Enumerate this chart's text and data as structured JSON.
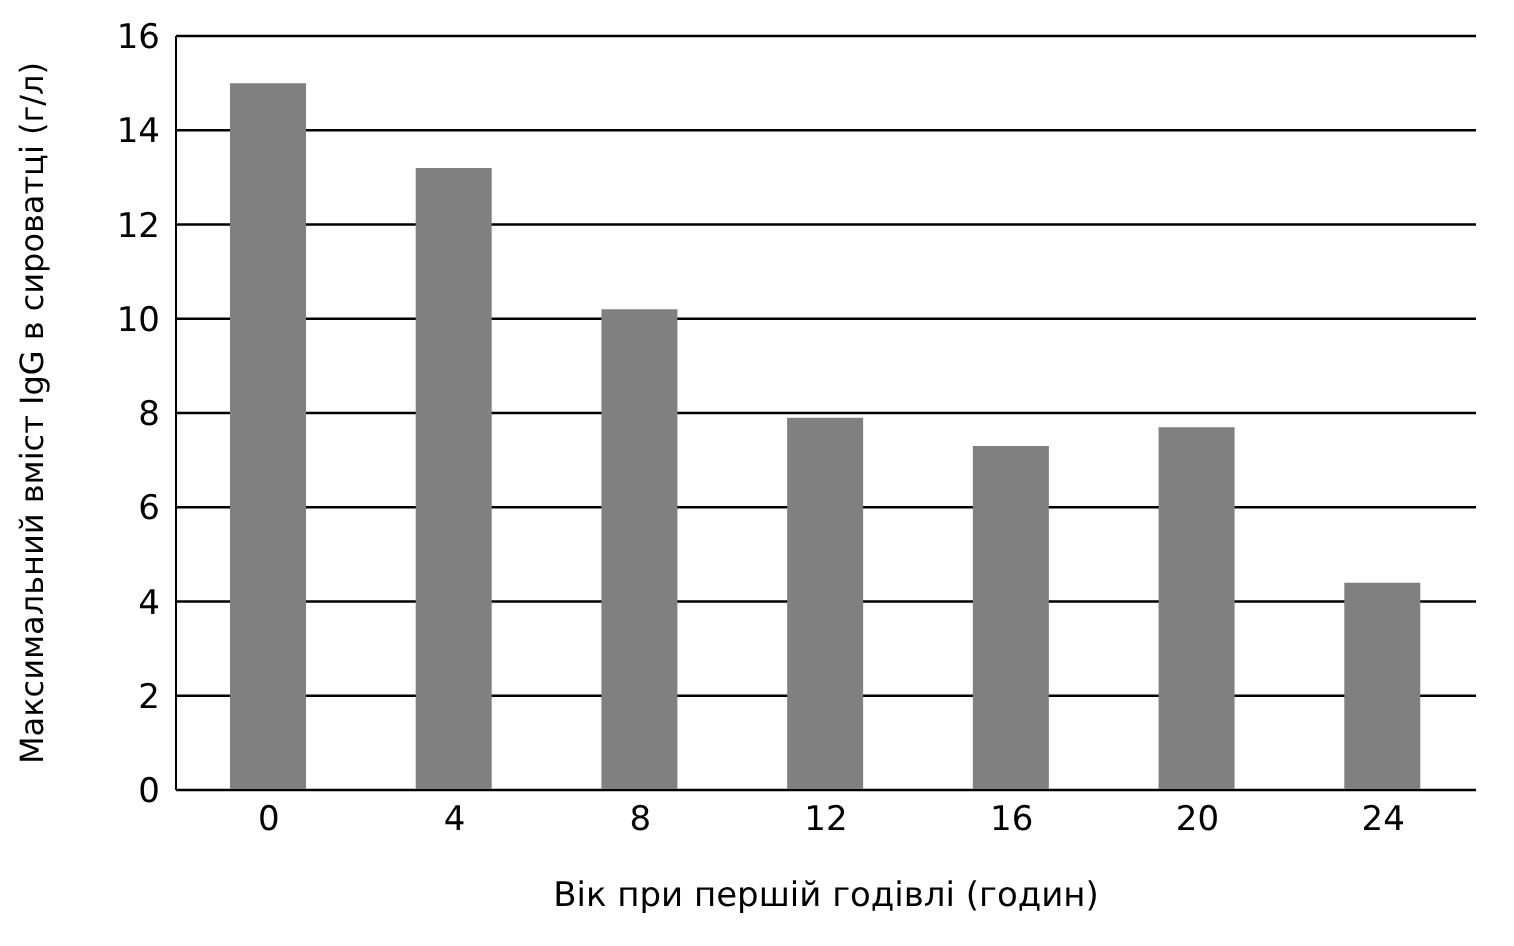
{
  "chart_data": {
    "type": "bar",
    "xlabel": "Вік при першій годівлі (годин)",
    "ylabel": "Максимальний вміст IgG в сироватці (г/л)",
    "categories": [
      "0",
      "4",
      "8",
      "12",
      "16",
      "20",
      "24"
    ],
    "values": [
      15.0,
      13.2,
      10.2,
      7.9,
      7.3,
      7.7,
      4.4
    ],
    "color": "#808080",
    "ylim": [
      0,
      16
    ],
    "yticks": [
      0,
      2,
      4,
      6,
      8,
      10,
      12,
      14,
      16
    ],
    "grid": "y"
  }
}
